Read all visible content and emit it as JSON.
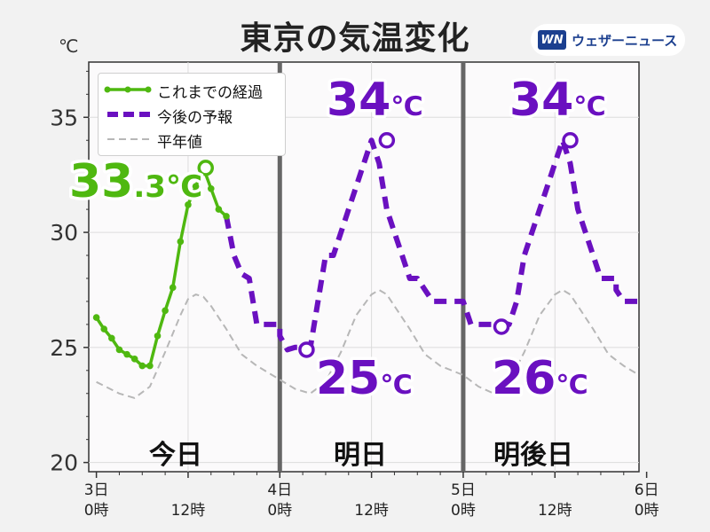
{
  "header": {
    "title": "東京の気温変化",
    "unit": "℃",
    "logo_mark": "WN",
    "logo_text": "ウェザーニュース"
  },
  "days": [
    "今日",
    "明日",
    "明後日"
  ],
  "annotations": [
    {
      "num": "33",
      "dec": ".3",
      "unit": "℃",
      "color": "#4fb810"
    },
    {
      "num": "34",
      "unit": "℃",
      "color": "#6a10c0"
    },
    {
      "num": "25",
      "unit": "℃",
      "color": "#6a10c0"
    },
    {
      "num": "34",
      "unit": "℃",
      "color": "#6a10c0"
    },
    {
      "num": "26",
      "unit": "℃",
      "color": "#6a10c0"
    }
  ],
  "chart_data": {
    "type": "line",
    "title": "東京の気温変化",
    "ylabel": "℃",
    "ylim": [
      19.6,
      37.4
    ],
    "xlim": [
      -1,
      71
    ],
    "y_ticks": [
      20,
      25,
      30,
      35
    ],
    "x_ticks": [
      {
        "x": 0,
        "day": "3日",
        "time": "0時"
      },
      {
        "x": 12,
        "time": "12時"
      },
      {
        "x": 24,
        "day": "4日",
        "time": "0時"
      },
      {
        "x": 36,
        "time": "12時"
      },
      {
        "x": 48,
        "day": "5日",
        "time": "0時"
      },
      {
        "x": 60,
        "time": "12時"
      },
      {
        "x": 72,
        "day": "6日",
        "time": "0時"
      }
    ],
    "grid": true,
    "legend": "top-left",
    "series": [
      {
        "name": "これまでの経過",
        "color": "#4fb810",
        "style": "solid-markers",
        "x": [
          0,
          1,
          2,
          3,
          4,
          5,
          6,
          7,
          8,
          9,
          10,
          11,
          12,
          13,
          14,
          15,
          16,
          17
        ],
        "y": [
          26.3,
          25.8,
          25.4,
          24.9,
          24.7,
          24.5,
          24.2,
          24.2,
          25.5,
          26.6,
          27.6,
          29.6,
          31.2,
          32.0,
          32.8,
          31.9,
          31.0,
          30.7
        ]
      },
      {
        "name": "今後の予報",
        "color": "#6a10c0",
        "style": "dashed",
        "x": [
          17,
          18,
          18,
          19,
          20,
          20,
          21,
          22,
          23,
          24,
          24,
          25,
          26,
          27,
          28,
          28,
          29,
          30,
          31,
          32,
          33,
          34,
          35,
          36,
          37,
          38,
          39,
          40,
          41,
          42,
          42,
          43,
          44,
          44,
          45,
          46,
          47,
          48,
          48,
          49,
          49,
          50,
          51,
          52,
          53,
          54,
          54,
          55,
          56,
          57,
          58,
          59,
          60,
          61,
          62,
          63,
          64,
          65,
          66,
          67,
          68,
          68,
          69,
          70,
          71,
          71
        ],
        "y": [
          30.7,
          29.0,
          29.0,
          28.2,
          28.0,
          28.0,
          26.0,
          26.0,
          26.0,
          26.0,
          25.5,
          24.9,
          25.0,
          25.0,
          25.0,
          25.0,
          27.0,
          29.0,
          29.0,
          30.0,
          31.0,
          32.0,
          33.0,
          34.0,
          33.0,
          31.0,
          30.0,
          29.0,
          28.0,
          28.0,
          28.0,
          27.5,
          27.0,
          27.0,
          27.0,
          27.0,
          27.0,
          27.0,
          27.0,
          26.0,
          26.0,
          26.0,
          26.0,
          26.0,
          26.0,
          26.0,
          26.0,
          27.0,
          29.0,
          30.0,
          31.0,
          32.0,
          33.0,
          34.0,
          33.0,
          31.0,
          30.0,
          29.0,
          28.0,
          28.0,
          28.0,
          27.5,
          27.0,
          27.0,
          27.0,
          27.0
        ]
      },
      {
        "name": "平年値",
        "color": "#b7b7b7",
        "style": "thin-dashed",
        "x": [
          0,
          3,
          5,
          7,
          9,
          11,
          12,
          13,
          14,
          15,
          17,
          19,
          21,
          23,
          26,
          28,
          30,
          32,
          34,
          36,
          37,
          38,
          39,
          41,
          43,
          45,
          48,
          50,
          52,
          54,
          56,
          58,
          60,
          61,
          62,
          63,
          65,
          67,
          69,
          71
        ],
        "y": [
          23.5,
          23.0,
          22.8,
          23.3,
          24.8,
          26.4,
          27.1,
          27.3,
          27.2,
          26.8,
          25.8,
          24.7,
          24.2,
          23.8,
          23.2,
          23.0,
          23.5,
          24.8,
          26.4,
          27.3,
          27.5,
          27.3,
          26.8,
          25.8,
          24.7,
          24.2,
          23.8,
          23.3,
          23.0,
          23.5,
          24.8,
          26.4,
          27.3,
          27.5,
          27.3,
          26.8,
          25.8,
          24.7,
          24.2,
          23.8
        ]
      }
    ],
    "markers": [
      {
        "x": 14.3,
        "y": 32.8,
        "color": "#4fb810"
      },
      {
        "x": 38,
        "y": 34.0,
        "color": "#6a10c0"
      },
      {
        "x": 27.5,
        "y": 24.9,
        "color": "#6a10c0"
      },
      {
        "x": 62,
        "y": 34.0,
        "color": "#6a10c0"
      },
      {
        "x": 53,
        "y": 25.9,
        "color": "#6a10c0"
      }
    ]
  }
}
